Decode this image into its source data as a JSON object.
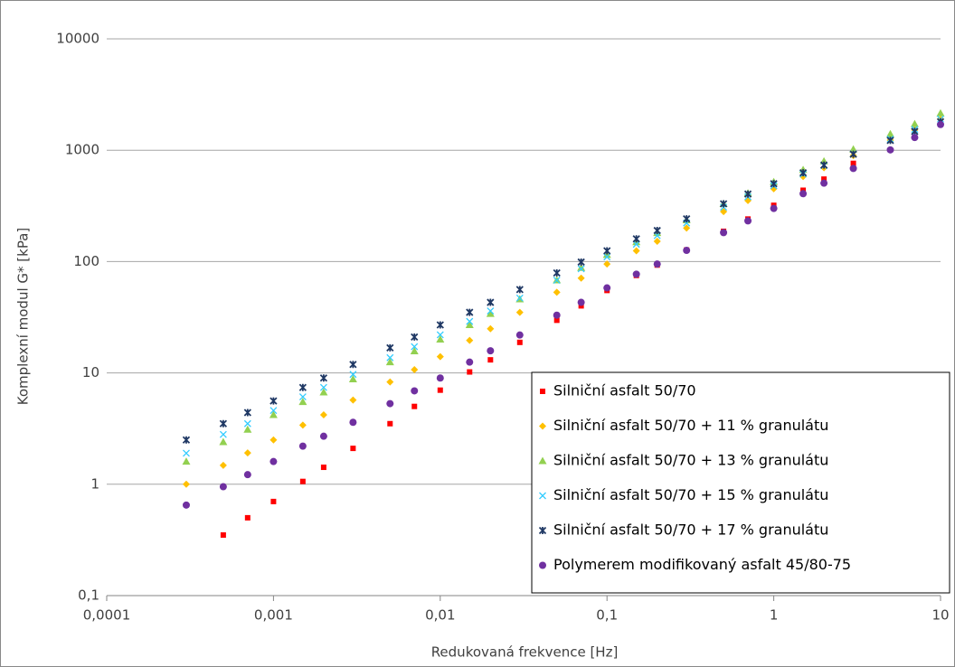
{
  "chart_data": {
    "type": "scatter",
    "x_label": "Redukovaná frekvence [Hz]",
    "y_label": "Komplexní modul G* [kPa]",
    "xlog": true,
    "ylog": true,
    "grid": true,
    "legend": "lower right",
    "xlim": [
      0.0001,
      10
    ],
    "ylim": [
      0.1,
      10000
    ],
    "xticks": [
      {
        "value": 0.0001,
        "label": "0,0001"
      },
      {
        "value": 0.001,
        "label": "0,001"
      },
      {
        "value": 0.01,
        "label": "0,01"
      },
      {
        "value": 0.1,
        "label": "0,1"
      },
      1,
      10
    ],
    "yticks": [
      {
        "value": 0.1,
        "label": "0,1"
      },
      1,
      10,
      100,
      1000,
      10000
    ],
    "x": [
      0.0003,
      0.0005,
      0.0007,
      0.001,
      0.0015,
      0.002,
      0.003,
      0.005,
      0.007,
      0.01,
      0.015,
      0.02,
      0.03,
      0.05,
      0.07,
      0.1,
      0.15,
      0.2,
      0.3,
      0.5,
      0.7,
      1,
      1.5,
      2,
      3,
      5,
      7,
      10
    ],
    "series": [
      {
        "name": "Silniční asfalt 50/70",
        "color": "#ff0000",
        "marker": "square",
        "values": [
          null,
          0.35,
          0.5,
          0.7,
          1.06,
          1.42,
          2.1,
          3.5,
          5.0,
          7.0,
          10.2,
          13.1,
          18.8,
          29.7,
          40,
          55,
          75,
          93,
          127,
          187,
          241,
          320,
          437,
          550,
          762,
          null,
          null,
          null
        ]
      },
      {
        "name": "Silniční asfalt 50/70 + 11 % granulátu",
        "color": "#ffc000",
        "marker": "diamond",
        "values": [
          1.0,
          1.48,
          1.91,
          2.5,
          3.4,
          4.2,
          5.7,
          8.3,
          10.7,
          14,
          19.6,
          24.9,
          35,
          53,
          71,
          95,
          125,
          152,
          200,
          281,
          353,
          450,
          580,
          695,
          895,
          1230,
          1520,
          1900
        ]
      },
      {
        "name": "Silniční asfalt 50/70 + 13 % granulátu",
        "color": "#92d050",
        "marker": "triangle",
        "values": [
          1.6,
          2.4,
          3.1,
          4.2,
          5.5,
          6.7,
          8.8,
          12.5,
          15.7,
          20,
          27,
          34,
          46,
          68,
          88,
          115,
          150,
          181,
          236,
          330,
          411,
          520,
          667,
          796,
          1020,
          1400,
          1720,
          2150
        ]
      },
      {
        "name": "Silniční asfalt 50/70 + 15 % granulátu",
        "color": "#33ccff",
        "marker": "x",
        "values": [
          1.9,
          2.8,
          3.5,
          4.6,
          6.1,
          7.4,
          9.7,
          13.7,
          17.2,
          22,
          29,
          36,
          47,
          68,
          86,
          110,
          143,
          171,
          222,
          308,
          382,
          480,
          611,
          726,
          925,
          1256,
          1538,
          1900
        ]
      },
      {
        "name": "Silniční asfalt 50/70 + 17 % granulátu",
        "color": "#1f3864",
        "marker": "star",
        "values": [
          2.5,
          3.5,
          4.4,
          5.6,
          7.4,
          9.0,
          11.9,
          16.8,
          21,
          27,
          35,
          43,
          56,
          79,
          99,
          125,
          160,
          190,
          242,
          330,
          404,
          500,
          627,
          735,
          920,
          1224,
          1476,
          1800
        ]
      },
      {
        "name": "Polymerem modifikovaný asfalt 45/80-75",
        "color": "#7030a0",
        "marker": "circle",
        "values": [
          0.65,
          0.95,
          1.22,
          1.6,
          2.2,
          2.7,
          3.6,
          5.3,
          6.9,
          9,
          12.5,
          15.8,
          21.9,
          33,
          43,
          58,
          77,
          95,
          126,
          182,
          232,
          300,
          407,
          506,
          686,
          1007,
          1300,
          1700
        ]
      }
    ]
  }
}
